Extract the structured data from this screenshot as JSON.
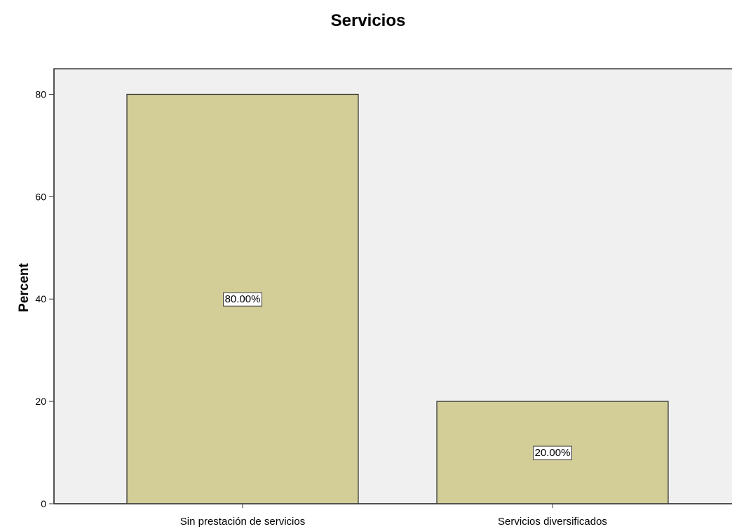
{
  "chart_data": {
    "type": "bar",
    "title": "Servicios",
    "xlabel": "",
    "ylabel": "Percent",
    "ylim": [
      0,
      85
    ],
    "yticks": [
      0,
      20,
      40,
      60,
      80
    ],
    "categories": [
      "Sin prestación de servicios",
      "Servicios diversificados"
    ],
    "values": [
      80,
      20
    ],
    "data_labels": [
      "80.00%",
      "20.00%"
    ],
    "grid": false,
    "legend": "none",
    "colors": {
      "bar_fill": "#D3CE98",
      "bar_stroke": "#3A3A3A",
      "plot_background": "#F0F0F0",
      "axis": "#3A3A3A"
    }
  }
}
